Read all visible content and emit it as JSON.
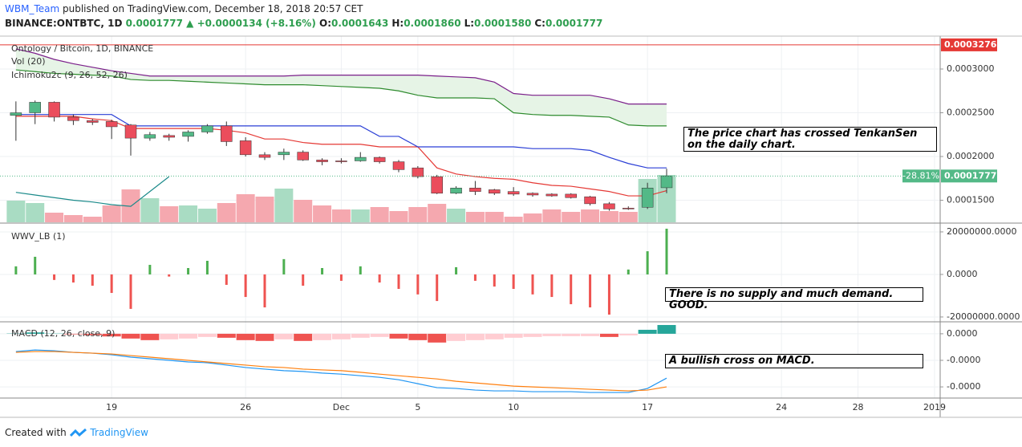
{
  "header": {
    "author": "WBM_Team",
    "published": "published on TradingView.com, December 18, 2018 20:57 CET",
    "symbol": "BINANCE:ONTBTC, 1D",
    "last": "0.0001777",
    "change": "+0.0000134 (+8.16%)",
    "ohlc": [
      {
        "label": "O:",
        "value": "0.0001643"
      },
      {
        "label": "H:",
        "value": "0.0001860"
      },
      {
        "label": "L:",
        "value": "0.0001580"
      },
      {
        "label": "C:",
        "value": "0.0001777"
      }
    ]
  },
  "footer": {
    "text": "Created with",
    "brand": "TradingView"
  },
  "chart_data": [
    {
      "type": "candlestick",
      "title": "Ontology / Bitcoin, 1D, BINANCE",
      "indicators": [
        "Vol (20)",
        "Ichimoku2c (9, 26, 52, 26)"
      ],
      "annotation": "The price chart has crossed TenkanSen on the daily chart.",
      "x": [
        "2018-11-14",
        "2018-11-15",
        "2018-11-16",
        "2018-11-17",
        "2018-11-18",
        "2018-11-19",
        "2018-11-20",
        "2018-11-21",
        "2018-11-22",
        "2018-11-23",
        "2018-11-24",
        "2018-11-25",
        "2018-11-26",
        "2018-11-27",
        "2018-11-28",
        "2018-11-29",
        "2018-11-30",
        "2018-12-01",
        "2018-12-02",
        "2018-12-03",
        "2018-12-04",
        "2018-12-05",
        "2018-12-06",
        "2018-12-07",
        "2018-12-08",
        "2018-12-09",
        "2018-12-10",
        "2018-12-11",
        "2018-12-12",
        "2018-12-13",
        "2018-12-14",
        "2018-12-15",
        "2018-12-16",
        "2018-12-17",
        "2018-12-18"
      ],
      "open": [
        0.000247,
        0.00025,
        0.000262,
        0.000245,
        0.000241,
        0.00024,
        0.000236,
        0.000221,
        0.000224,
        0.000223,
        0.000228,
        0.000235,
        0.000218,
        0.000202,
        0.000202,
        0.000205,
        0.000196,
        0.000195,
        0.000195,
        0.000199,
        0.000194,
        0.000187,
        0.000177,
        0.000158,
        0.000164,
        0.000162,
        0.00016,
        0.000158,
        0.000157,
        0.000157,
        0.000154,
        0.000146,
        0.000141,
        0.000142,
        0.0001643
      ],
      "high": [
        0.000263,
        0.000264,
        0.000263,
        0.000248,
        0.000243,
        0.000242,
        0.000237,
        0.000228,
        0.000226,
        0.00023,
        0.000237,
        0.00024,
        0.000222,
        0.000205,
        0.000209,
        0.000207,
        0.000198,
        0.000198,
        0.000205,
        0.0002,
        0.000196,
        0.000189,
        0.000179,
        0.000166,
        0.000172,
        0.000163,
        0.000165,
        0.000159,
        0.000158,
        0.000158,
        0.000155,
        0.000148,
        0.000143,
        0.00017,
        0.000186
      ],
      "low": [
        0.000218,
        0.000237,
        0.00024,
        0.000236,
        0.000236,
        0.00022,
        0.000201,
        0.000218,
        0.000218,
        0.000217,
        0.000226,
        0.000212,
        0.0002,
        0.000196,
        0.000196,
        0.000195,
        0.00019,
        0.000192,
        0.000194,
        0.000192,
        0.000182,
        0.000175,
        0.000157,
        0.000157,
        0.000156,
        0.000156,
        0.000155,
        0.000154,
        0.000154,
        0.000152,
        0.000144,
        0.000138,
        0.000139,
        0.00014,
        0.000158
      ],
      "close": [
        0.00025,
        0.000262,
        0.000245,
        0.000241,
        0.000239,
        0.000234,
        0.000221,
        0.000225,
        0.000222,
        0.000228,
        0.000235,
        0.000217,
        0.000202,
        0.000199,
        0.000205,
        0.000196,
        0.000194,
        0.000194,
        0.000199,
        0.000194,
        0.000185,
        0.000177,
        0.000158,
        0.000164,
        0.00016,
        0.000158,
        0.000157,
        0.000156,
        0.000155,
        0.000153,
        0.000146,
        0.00014,
        0.00014,
        0.000164,
        0.0001777
      ],
      "up_color": "#53b987",
      "down_color": "#eb4d5c",
      "volume": [
        27,
        24,
        12,
        9,
        7,
        21,
        41,
        30,
        20,
        21,
        17,
        24,
        35,
        32,
        42,
        28,
        21,
        16,
        16,
        19,
        14,
        19,
        23,
        17,
        13,
        13,
        7,
        11,
        16,
        13,
        16,
        14,
        13,
        54,
        59
      ],
      "volume_lim": [
        0,
        100
      ],
      "volume_up_color": "#a9dcc3",
      "volume_down_color": "#f5a8af",
      "lines": [
        {
          "color": "#e53935",
          "values": [
            0.000246,
            0.000246,
            0.000246,
            0.000246,
            0.000243,
            0.000241,
            0.000232,
            0.000232,
            0.000232,
            0.000232,
            0.000232,
            0.00023,
            0.000227,
            0.00022,
            0.00022,
            0.000216,
            0.000214,
            0.000214,
            0.000214,
            0.000211,
            0.000211,
            0.000211,
            0.000187,
            0.00018,
            0.000177,
            0.000175,
            0.000174,
            0.00017,
            0.000167,
            0.000166,
            0.000163,
            0.00016,
            0.000155,
            0.000155,
            0.000161
          ]
        },
        {
          "color": "#2b3fd6",
          "values": [
            0.000248,
            0.000248,
            0.000248,
            0.000248,
            0.000248,
            0.000248,
            0.000235,
            0.000235,
            0.000235,
            0.000235,
            0.000235,
            0.000235,
            0.000235,
            0.000235,
            0.000235,
            0.000235,
            0.000235,
            0.000235,
            0.000235,
            0.000223,
            0.000223,
            0.000211,
            0.000211,
            0.000211,
            0.000211,
            0.000211,
            0.000211,
            0.000209,
            0.000209,
            0.000209,
            0.000207,
            0.000199,
            0.000192,
            0.000187,
            0.000187
          ]
        }
      ],
      "cloud": {
        "fill": "#e6f4e6",
        "lead_a": {
          "color": "#2e8b2e",
          "values": [
            0.000299,
            0.000297,
            0.000295,
            0.000294,
            0.000293,
            0.000292,
            0.000288,
            0.000287,
            0.000287,
            0.000286,
            0.000285,
            0.000284,
            0.000283,
            0.000282,
            0.000282,
            0.000282,
            0.000281,
            0.00028,
            0.000279,
            0.000278,
            0.000275,
            0.00027,
            0.000267,
            0.000267,
            0.000267,
            0.000266,
            0.00025,
            0.000248,
            0.000247,
            0.000247,
            0.000246,
            0.000245,
            0.000236,
            0.000235,
            0.000235
          ]
        },
        "lead_b": {
          "color": "#7b1f8a",
          "values": [
            0.000323,
            0.000318,
            0.000311,
            0.000306,
            0.000302,
            0.000298,
            0.000295,
            0.000292,
            0.000292,
            0.000292,
            0.000292,
            0.000292,
            0.000292,
            0.000292,
            0.000292,
            0.000293,
            0.000293,
            0.000293,
            0.000293,
            0.000293,
            0.000293,
            0.000293,
            0.000292,
            0.000291,
            0.00029,
            0.000285,
            0.000272,
            0.00027,
            0.00027,
            0.00027,
            0.00027,
            0.000266,
            0.00026,
            0.00026,
            0.00026
          ]
        }
      },
      "lagging": {
        "color": "#1b8a8a",
        "x": [
          "2018-11-14",
          "2018-11-15",
          "2018-11-16",
          "2018-11-17",
          "2018-11-18",
          "2018-11-19",
          "2018-11-20",
          "2018-11-21",
          "2018-11-22"
        ],
        "values": [
          0.000159,
          0.000156,
          0.000153,
          0.00015,
          0.000148,
          0.000145,
          0.000143,
          0.00016,
          0.000177
        ]
      },
      "hlines": [
        {
          "value": 0.0003276,
          "color": "#e53935"
        },
        {
          "value": 0.0001777,
          "change": "-28.81%",
          "color": "#53b987",
          "dotted": true
        }
      ],
      "ylim": [
        0.0001248,
        0.0003376
      ],
      "yticks": [
        {
          "value": 0.0003,
          "label": "0.0003000"
        },
        {
          "value": 0.00025,
          "label": "0.0002500"
        },
        {
          "value": 0.0002,
          "label": "0.0002000"
        },
        {
          "value": 0.00015,
          "label": "0.0001500"
        }
      ],
      "xlim": [
        "2018-11-13",
        "2019-01-01"
      ],
      "xticks": [
        {
          "value": "2018-11-19",
          "label": "19"
        },
        {
          "value": "2018-11-26",
          "label": "26"
        },
        {
          "value": "2018-12-01",
          "label": "Dec"
        },
        {
          "value": "2018-12-05",
          "label": "5"
        },
        {
          "value": "2018-12-10",
          "label": "10"
        },
        {
          "value": "2018-12-17",
          "label": "17"
        },
        {
          "value": "2018-12-24",
          "label": "24"
        },
        {
          "value": "2018-12-28",
          "label": "28"
        },
        {
          "value": "2019-01-01",
          "label": "2019"
        }
      ],
      "grid": true
    },
    {
      "type": "bar",
      "title": "WWV_LB (1)",
      "annotation": "There is no supply and much demand. GOOD.",
      "values": [
        3800000,
        8300000,
        -2600000,
        -3800000,
        -5300000,
        -8700000,
        -16200000,
        4500000,
        -1000000,
        3000000,
        6400000,
        -4900000,
        -10600000,
        -15500000,
        7200000,
        -5300000,
        3000000,
        -3000000,
        3800000,
        -3800000,
        -6800000,
        -9400000,
        -12500000,
        3400000,
        -3000000,
        -5700000,
        -6800000,
        -9400000,
        -10600000,
        -14000000,
        -15500000,
        -18900000,
        2300000,
        10900000,
        21500000
      ],
      "up_color": "#4caf50",
      "down_color": "#ef5350",
      "ylim": [
        -21900000,
        23000000
      ],
      "yticks": [
        {
          "value": 20000000,
          "label": "20000000.0000"
        },
        {
          "value": 0,
          "label": "0.0000"
        },
        {
          "value": -20000000,
          "label": "-20000000.0000"
        }
      ]
    },
    {
      "type": "macd",
      "title": "MACD (12, 26, close, 9)",
      "annotation": "A bullish cross on MACD.",
      "histogram": [
        1e-07,
        5e-07,
        3e-07,
        -2e-07,
        -5e-07,
        -1e-06,
        -1.8e-06,
        -2.4e-06,
        -2.1e-06,
        -1.8e-06,
        -1.2e-06,
        -1.5e-06,
        -2.4e-06,
        -2.7e-06,
        -2.1e-06,
        -2.7e-06,
        -2.4e-06,
        -2.1e-06,
        -1.5e-06,
        -1.2e-06,
        -1.8e-06,
        -2.4e-06,
        -3.3e-06,
        -2.7e-06,
        -2.4e-06,
        -2.1e-06,
        -1.5e-06,
        -1.2e-06,
        -9e-07,
        -9e-07,
        -9e-07,
        -1.2e-06,
        -6e-07,
        1.5e-06,
        3.3e-06
      ],
      "hist_colors": {
        "up_rising": "#26a69a",
        "up_falling": "#b2dfdb",
        "down_falling": "#ef5350",
        "down_rising": "#ffcdd2"
      },
      "macd": {
        "color": "#2196f3",
        "values": [
          -6.7e-06,
          -6.1e-06,
          -6.4e-06,
          -7e-06,
          -7.3e-06,
          -7.9e-06,
          -8.8e-06,
          -9.4e-06,
          -1e-05,
          -1.06e-05,
          -1.09e-05,
          -1.18e-05,
          -1.27e-05,
          -1.33e-05,
          -1.39e-05,
          -1.42e-05,
          -1.48e-05,
          -1.52e-05,
          -1.58e-05,
          -1.64e-05,
          -1.73e-05,
          -1.88e-05,
          -2.03e-05,
          -2.06e-05,
          -2.12e-05,
          -2.15e-05,
          -2.15e-05,
          -2.18e-05,
          -2.18e-05,
          -2.18e-05,
          -2.21e-05,
          -2.21e-05,
          -2.21e-05,
          -2.06e-05,
          -1.67e-05
        ]
      },
      "signal": {
        "color": "#ff7f0e",
        "values": [
          -7e-06,
          -6.7e-06,
          -6.7e-06,
          -7e-06,
          -7.3e-06,
          -7.6e-06,
          -8.2e-06,
          -8.8e-06,
          -9.4e-06,
          -1e-05,
          -1.06e-05,
          -1.12e-05,
          -1.18e-05,
          -1.24e-05,
          -1.27e-05,
          -1.33e-05,
          -1.36e-05,
          -1.39e-05,
          -1.45e-05,
          -1.52e-05,
          -1.58e-05,
          -1.64e-05,
          -1.7e-05,
          -1.79e-05,
          -1.85e-05,
          -1.91e-05,
          -1.97e-05,
          -2e-05,
          -2.03e-05,
          -2.06e-05,
          -2.09e-05,
          -2.12e-05,
          -2.15e-05,
          -2.12e-05,
          -2e-05
        ]
      },
      "ylim": [
        -2.39e-05,
        3.9e-06
      ],
      "yticks": [
        {
          "value": 0,
          "label": "0.0000"
        },
        {
          "value": -1e-05,
          "label": "-0.0000"
        },
        {
          "value": -2e-05,
          "label": "-0.0000"
        }
      ]
    }
  ]
}
